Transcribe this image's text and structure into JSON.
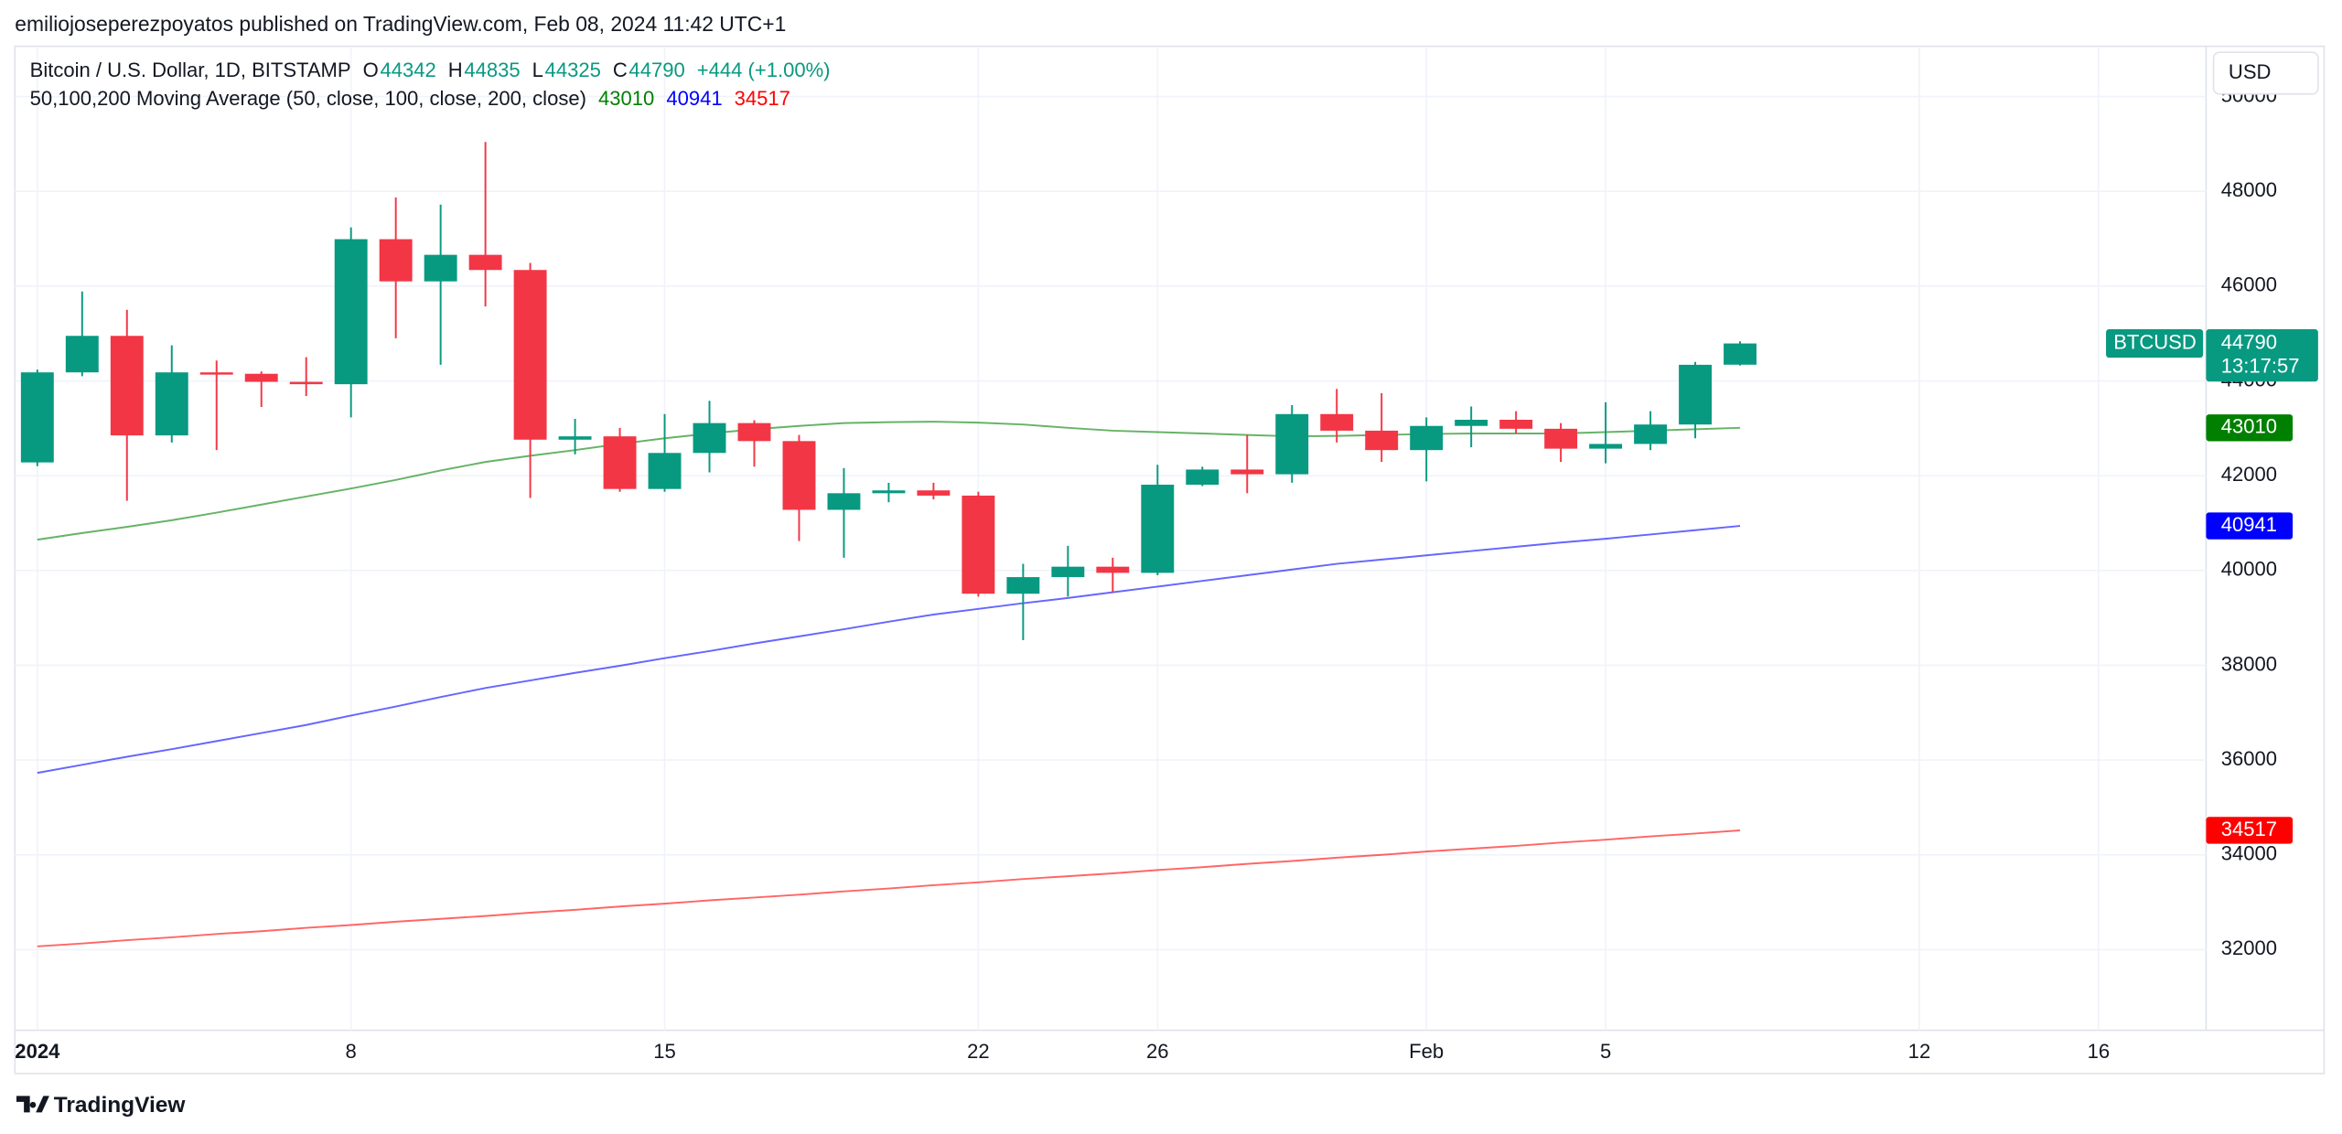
{
  "header": {
    "publisher": "emiliojoseperezpoyatos published on TradingView.com, Feb 08, 2024 11:42 UTC+1"
  },
  "footer": {
    "logo": "TradingView"
  },
  "currency_button": "USD",
  "chart_data": {
    "type": "candlestick",
    "title": "Bitcoin / U.S. Dollar, 1D, BITSTAMP",
    "ohlc_letters": [
      "O",
      "H",
      "L",
      "C"
    ],
    "change_label": "+444 (+1.00%)",
    "symbol_tag": "BTCUSD",
    "countdown": "13:17:57",
    "indicator_title": "50,100,200 Moving Average (50, close, 100, close, 200, close)",
    "up_color": "#089981",
    "down_color": "#f23645",
    "grid": true,
    "ylim": [
      30300,
      51060
    ],
    "yticks": [
      32000,
      34000,
      36000,
      38000,
      40000,
      42000,
      44000,
      46000,
      48000,
      50000
    ],
    "xlim": [
      -0.5,
      48.4
    ],
    "xticks": [
      {
        "value": 0,
        "label": "2024"
      },
      {
        "value": 7,
        "label": "8"
      },
      {
        "value": 14,
        "label": "15"
      },
      {
        "value": 21,
        "label": "22"
      },
      {
        "value": 25,
        "label": "26"
      },
      {
        "value": 31,
        "label": "Feb"
      },
      {
        "value": 35,
        "label": "5"
      },
      {
        "value": 42,
        "label": "12"
      },
      {
        "value": 46,
        "label": "16"
      }
    ],
    "candles": {
      "open": [
        42280,
        44180,
        44950,
        42850,
        44180,
        44150,
        43980,
        43930,
        46990,
        46100,
        46660,
        46340,
        42760,
        42830,
        41720,
        42480,
        43110,
        42730,
        41280,
        41630,
        41690,
        41580,
        39510,
        39860,
        40080,
        39950,
        41810,
        42130,
        42030,
        43300,
        42950,
        42540,
        43050,
        43180,
        42990,
        42570,
        42670,
        43080,
        44342
      ],
      "high": [
        44240,
        45886,
        45500,
        44750,
        44430,
        44200,
        44500,
        47240,
        47870,
        47720,
        49040,
        46490,
        43200,
        43010,
        43300,
        43580,
        43170,
        42860,
        42160,
        41850,
        41850,
        41660,
        40140,
        40520,
        40270,
        42230,
        42190,
        42860,
        43490,
        43830,
        43740,
        43230,
        43460,
        43360,
        43110,
        43550,
        43360,
        44400,
        44835
      ],
      "low": [
        42200,
        44100,
        41470,
        42700,
        42540,
        43450,
        43680,
        43230,
        44900,
        44340,
        45570,
        41530,
        42450,
        41660,
        41660,
        42070,
        42190,
        40620,
        40270,
        41440,
        41500,
        39450,
        38530,
        39450,
        39540,
        39900,
        41780,
        41630,
        41850,
        42700,
        42290,
        41880,
        42600,
        42890,
        42290,
        42260,
        42540,
        42790,
        44325
      ],
      "close": [
        44180,
        44950,
        42850,
        44180,
        44150,
        43980,
        43930,
        46990,
        46100,
        46660,
        46340,
        42760,
        42830,
        41720,
        42480,
        43110,
        42730,
        41280,
        41630,
        41690,
        41580,
        39510,
        39860,
        40080,
        39950,
        41810,
        42130,
        42030,
        43300,
        42950,
        42540,
        43050,
        43180,
        42990,
        42570,
        42670,
        43080,
        44340,
        44790
      ]
    },
    "series": [
      {
        "name": "43010",
        "color": "#008000",
        "values": [
          40650,
          40790,
          40920,
          41060,
          41220,
          41390,
          41560,
          41730,
          41910,
          42110,
          42290,
          42420,
          42540,
          42670,
          42790,
          42890,
          42980,
          43050,
          43110,
          43130,
          43140,
          43120,
          43080,
          43010,
          42950,
          42920,
          42890,
          42860,
          42830,
          42840,
          42860,
          42880,
          42890,
          42890,
          42890,
          42920,
          42950,
          42980,
          43010
        ]
      },
      {
        "name": "40941",
        "color": "#0000ff",
        "values": [
          35730,
          35900,
          36070,
          36230,
          36400,
          36570,
          36740,
          36940,
          37130,
          37330,
          37520,
          37680,
          37840,
          37990,
          38150,
          38300,
          38460,
          38610,
          38760,
          38920,
          39070,
          39190,
          39310,
          39420,
          39540,
          39660,
          39780,
          39900,
          40020,
          40140,
          40230,
          40320,
          40410,
          40500,
          40590,
          40670,
          40760,
          40850,
          40941
        ]
      },
      {
        "name": "34517",
        "color": "#ff0000",
        "values": [
          32070,
          32130,
          32200,
          32260,
          32330,
          32390,
          32460,
          32520,
          32590,
          32650,
          32710,
          32780,
          32840,
          32910,
          32970,
          33040,
          33100,
          33160,
          33230,
          33290,
          33360,
          33420,
          33490,
          33550,
          33610,
          33680,
          33740,
          33810,
          33870,
          33940,
          34000,
          34070,
          34130,
          34190,
          34260,
          34320,
          34390,
          34450,
          34517
        ]
      }
    ]
  }
}
